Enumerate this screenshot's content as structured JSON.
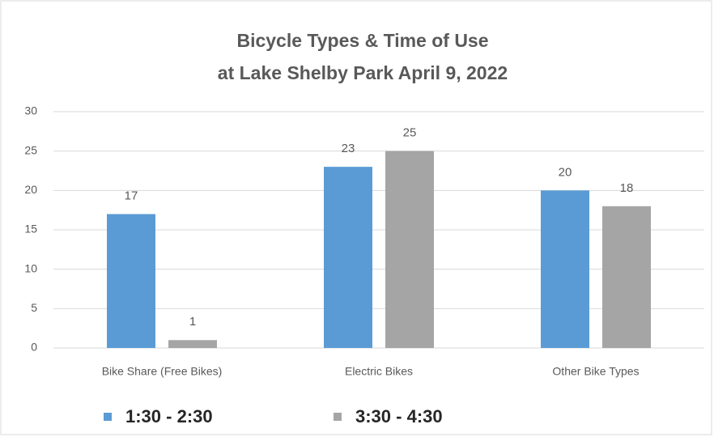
{
  "chart_data": {
    "type": "bar",
    "title": [
      "Bicycle Types & Time of Use",
      "at Lake Shelby Park April 9, 2022"
    ],
    "categories": [
      "Bike Share (Free Bikes)",
      "Electric Bikes",
      "Other Bike Types"
    ],
    "series": [
      {
        "name": "1:30 - 2:30",
        "color": "#5b9bd5",
        "values": [
          17,
          23,
          20
        ]
      },
      {
        "name": "3:30 - 4:30",
        "color": "#a5a5a5",
        "values": [
          1,
          25,
          18
        ]
      }
    ],
    "ylim": [
      0,
      30
    ],
    "yticks": [
      0,
      5,
      10,
      15,
      20,
      25,
      30
    ],
    "grid": true,
    "legend": "bottom"
  }
}
